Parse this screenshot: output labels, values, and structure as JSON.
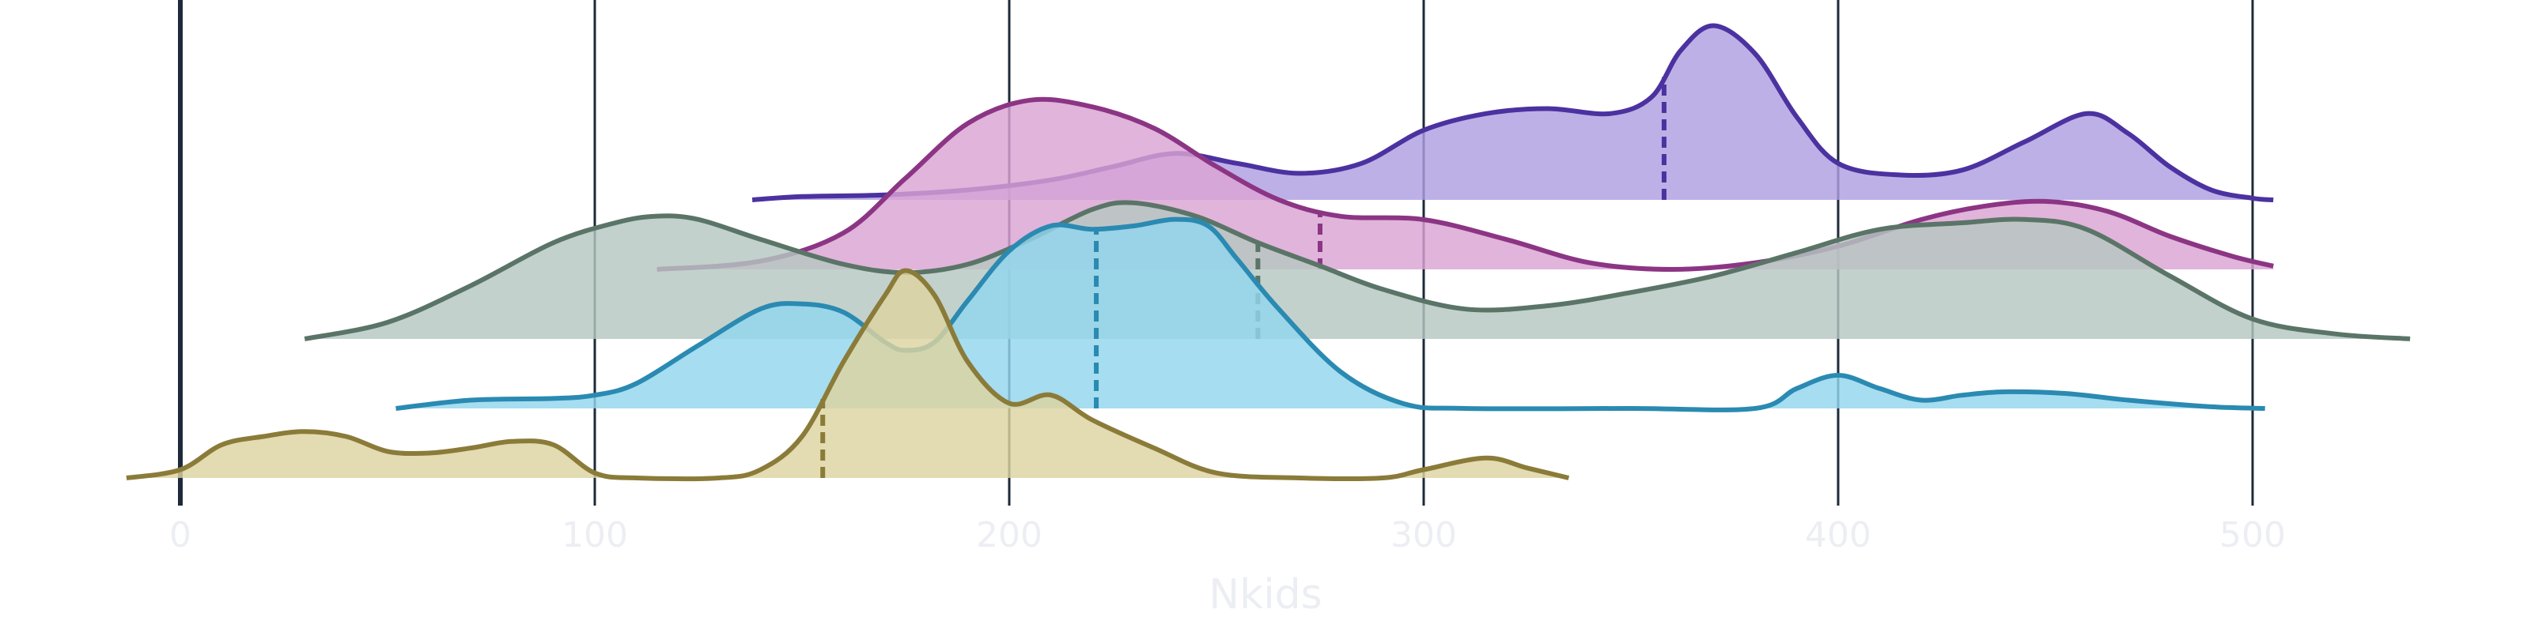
{
  "chart_data": {
    "type": "area",
    "xlabel": "Nkids",
    "ylabel": "",
    "xlim": [
      -13,
      540
    ],
    "x_ticks": [
      "0",
      "100",
      "200",
      "300",
      "400",
      "500"
    ],
    "x_tick_values": [
      0,
      100,
      200,
      300,
      400,
      500
    ],
    "grid": true,
    "legend": "none",
    "colors": {
      "gridline": "#1e2a3a",
      "zero_line": "#1e2a3a",
      "tick_text": "#eceef3",
      "axis_title": "#eceef3"
    },
    "series": [
      {
        "color": "#4b32a0",
        "fill": "#af9fe0",
        "baseline_level": 4,
        "median": 358,
        "points": [
          [
            138,
            0
          ],
          [
            150,
            0.02
          ],
          [
            170,
            0.03
          ],
          [
            190,
            0.06
          ],
          [
            210,
            0.12
          ],
          [
            225,
            0.2
          ],
          [
            240,
            0.28
          ],
          [
            255,
            0.22
          ],
          [
            270,
            0.16
          ],
          [
            285,
            0.22
          ],
          [
            300,
            0.42
          ],
          [
            315,
            0.52
          ],
          [
            330,
            0.55
          ],
          [
            345,
            0.52
          ],
          [
            355,
            0.62
          ],
          [
            362,
            0.9
          ],
          [
            370,
            1.05
          ],
          [
            380,
            0.88
          ],
          [
            390,
            0.5
          ],
          [
            400,
            0.22
          ],
          [
            415,
            0.15
          ],
          [
            430,
            0.18
          ],
          [
            445,
            0.35
          ],
          [
            460,
            0.52
          ],
          [
            470,
            0.4
          ],
          [
            480,
            0.2
          ],
          [
            490,
            0.06
          ],
          [
            500,
            0.01
          ],
          [
            505,
            0
          ]
        ]
      },
      {
        "color": "#8c3584",
        "fill": "#daa4d3",
        "baseline_level": 3,
        "median": 275,
        "points": [
          [
            115,
            0
          ],
          [
            140,
            0.05
          ],
          [
            160,
            0.22
          ],
          [
            175,
            0.55
          ],
          [
            190,
            0.88
          ],
          [
            205,
            1.02
          ],
          [
            220,
            0.98
          ],
          [
            235,
            0.85
          ],
          [
            250,
            0.62
          ],
          [
            265,
            0.42
          ],
          [
            280,
            0.32
          ],
          [
            300,
            0.3
          ],
          [
            320,
            0.18
          ],
          [
            340,
            0.04
          ],
          [
            360,
            0
          ],
          [
            380,
            0.04
          ],
          [
            400,
            0.14
          ],
          [
            420,
            0.3
          ],
          [
            435,
            0.38
          ],
          [
            450,
            0.41
          ],
          [
            465,
            0.35
          ],
          [
            480,
            0.2
          ],
          [
            495,
            0.08
          ],
          [
            505,
            0.02
          ]
        ]
      },
      {
        "color": "#5a7567",
        "fill": "#b6c7c1",
        "baseline_level": 2,
        "median": 260,
        "points": [
          [
            30,
            0
          ],
          [
            50,
            0.1
          ],
          [
            70,
            0.32
          ],
          [
            90,
            0.58
          ],
          [
            105,
            0.7
          ],
          [
            115,
            0.74
          ],
          [
            125,
            0.72
          ],
          [
            140,
            0.6
          ],
          [
            160,
            0.45
          ],
          [
            175,
            0.4
          ],
          [
            190,
            0.45
          ],
          [
            205,
            0.6
          ],
          [
            220,
            0.78
          ],
          [
            230,
            0.82
          ],
          [
            245,
            0.74
          ],
          [
            260,
            0.58
          ],
          [
            275,
            0.44
          ],
          [
            290,
            0.3
          ],
          [
            310,
            0.18
          ],
          [
            330,
            0.2
          ],
          [
            350,
            0.28
          ],
          [
            370,
            0.38
          ],
          [
            390,
            0.52
          ],
          [
            410,
            0.66
          ],
          [
            430,
            0.7
          ],
          [
            445,
            0.72
          ],
          [
            460,
            0.66
          ],
          [
            480,
            0.38
          ],
          [
            500,
            0.12
          ],
          [
            520,
            0.03
          ],
          [
            538,
            0
          ]
        ]
      },
      {
        "color": "#2a8ab2",
        "fill": "#93d6ee",
        "baseline_level": 1,
        "median": 221,
        "points": [
          [
            52,
            0
          ],
          [
            70,
            0.05
          ],
          [
            90,
            0.06
          ],
          [
            100,
            0.08
          ],
          [
            110,
            0.15
          ],
          [
            125,
            0.38
          ],
          [
            140,
            0.6
          ],
          [
            150,
            0.63
          ],
          [
            160,
            0.58
          ],
          [
            170,
            0.4
          ],
          [
            175,
            0.35
          ],
          [
            182,
            0.4
          ],
          [
            190,
            0.65
          ],
          [
            200,
            0.95
          ],
          [
            210,
            1.1
          ],
          [
            220,
            1.08
          ],
          [
            230,
            1.1
          ],
          [
            240,
            1.14
          ],
          [
            248,
            1.1
          ],
          [
            255,
            0.9
          ],
          [
            265,
            0.6
          ],
          [
            280,
            0.22
          ],
          [
            295,
            0.03
          ],
          [
            310,
            0
          ],
          [
            350,
            0
          ],
          [
            380,
            0
          ],
          [
            390,
            0.12
          ],
          [
            400,
            0.2
          ],
          [
            410,
            0.12
          ],
          [
            420,
            0.05
          ],
          [
            430,
            0.08
          ],
          [
            440,
            0.1
          ],
          [
            455,
            0.09
          ],
          [
            470,
            0.05
          ],
          [
            490,
            0.01
          ],
          [
            503,
            0
          ]
        ]
      },
      {
        "color": "#8b7b39",
        "fill": "#ddd3a0",
        "baseline_level": 0,
        "median": 155,
        "points": [
          [
            -13,
            0
          ],
          [
            0,
            0.05
          ],
          [
            10,
            0.2
          ],
          [
            20,
            0.25
          ],
          [
            30,
            0.28
          ],
          [
            40,
            0.25
          ],
          [
            50,
            0.16
          ],
          [
            60,
            0.15
          ],
          [
            70,
            0.18
          ],
          [
            80,
            0.22
          ],
          [
            90,
            0.2
          ],
          [
            100,
            0.03
          ],
          [
            110,
            0
          ],
          [
            130,
            0
          ],
          [
            140,
            0.05
          ],
          [
            150,
            0.25
          ],
          [
            160,
            0.7
          ],
          [
            170,
            1.1
          ],
          [
            175,
            1.25
          ],
          [
            182,
            1.1
          ],
          [
            190,
            0.7
          ],
          [
            200,
            0.45
          ],
          [
            210,
            0.5
          ],
          [
            220,
            0.35
          ],
          [
            235,
            0.18
          ],
          [
            250,
            0.03
          ],
          [
            270,
            0
          ],
          [
            290,
            0
          ],
          [
            300,
            0.05
          ],
          [
            315,
            0.12
          ],
          [
            325,
            0.06
          ],
          [
            335,
            0
          ]
        ]
      }
    ]
  }
}
